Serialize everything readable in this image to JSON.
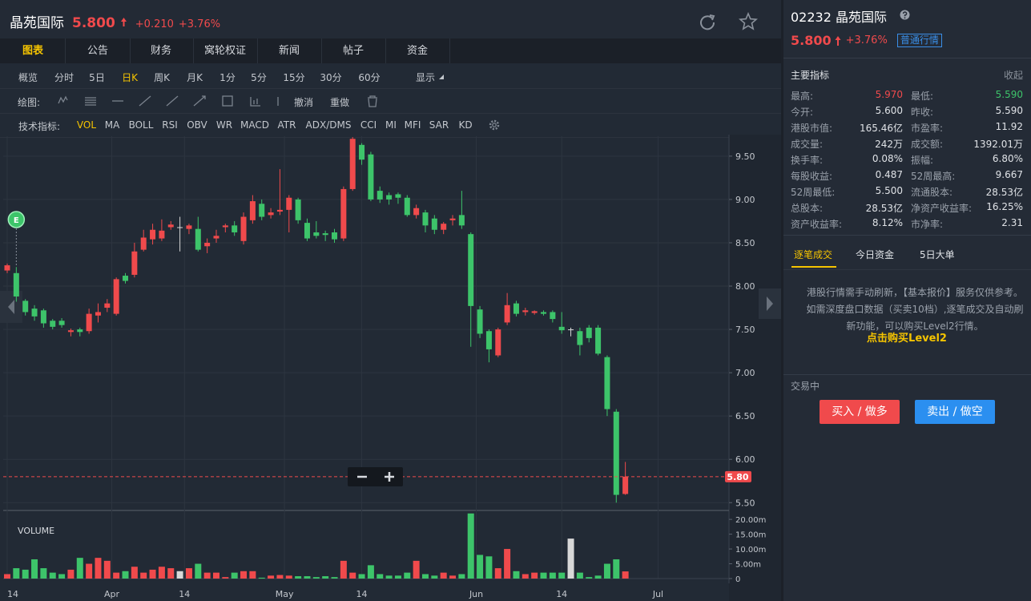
{
  "header": {
    "name": "晶苑国际",
    "price": "5.800",
    "change": "+0.210",
    "change_pct": "+3.76%"
  },
  "tabs": [
    "图表",
    "公告",
    "财务",
    "窝轮权证",
    "新闻",
    "帖子",
    "资金"
  ],
  "periods": [
    "概览",
    "分时",
    "5日",
    "日K",
    "周K",
    "月K",
    "1分",
    "5分",
    "15分",
    "30分",
    "60分"
  ],
  "display": "显示",
  "draw_label": "绘图:",
  "draw_actions": [
    "撤消",
    "重做"
  ],
  "indicator_label": "技术指标:",
  "indicators": [
    "VOL",
    "MA",
    "BOLL",
    "RSI",
    "OBV",
    "WR",
    "MACD",
    "ATR",
    "ADX/DMS",
    "CCI",
    "MI",
    "MFI",
    "SAR",
    "KD"
  ],
  "chart_data": [
    {
      "type": "candlestick",
      "event_label": "E",
      "up_color": "#f04a4c",
      "down_color": "#3dc46a",
      "flat_color": "#d8d8d8",
      "categories": [
        null,
        null,
        null,
        null,
        null,
        null,
        null,
        null,
        null,
        null,
        null,
        null,
        null,
        null,
        null,
        null,
        null,
        null,
        null,
        null,
        null,
        null,
        null,
        null,
        null,
        null,
        null,
        null,
        null,
        null,
        null,
        null,
        null,
        null,
        null,
        null,
        null,
        null,
        null,
        null,
        null,
        null,
        null,
        null,
        null,
        null,
        null,
        null,
        null,
        null,
        null,
        null,
        null,
        null,
        null,
        null,
        null,
        null,
        null,
        null,
        null,
        null,
        null,
        null,
        null,
        null,
        null,
        null,
        null
      ],
      "open": [
        8.18,
        8.15,
        7.83,
        7.74,
        7.72,
        7.6,
        7.6,
        7.47,
        7.5,
        7.48,
        7.66,
        7.75,
        7.68,
        8.12,
        8.13,
        8.42,
        8.54,
        8.55,
        8.68,
        8.68,
        8.66,
        8.66,
        8.46,
        8.55,
        8.68,
        8.7,
        8.52,
        8.76,
        8.95,
        8.82,
        8.86,
        8.88,
        9.0,
        8.73,
        8.62,
        8.61,
        8.62,
        8.55,
        9.12,
        9.63,
        9.52,
        9.1,
        9.05,
        9.06,
        9.02,
        8.82,
        8.85,
        8.78,
        8.65,
        8.76,
        8.82,
        8.6,
        7.73,
        7.48,
        7.2,
        7.58,
        7.8,
        7.7,
        7.69,
        7.7,
        7.7,
        7.53,
        7.5,
        7.48,
        7.52,
        7.52,
        7.18,
        6.55,
        5.6
      ],
      "high": [
        8.26,
        8.22,
        7.85,
        7.78,
        7.74,
        7.62,
        7.63,
        7.51,
        7.52,
        7.74,
        7.8,
        7.85,
        8.1,
        8.15,
        8.5,
        8.65,
        8.72,
        8.77,
        8.75,
        8.8,
        8.72,
        8.8,
        8.55,
        8.65,
        8.72,
        8.75,
        8.85,
        9.05,
        9.0,
        8.9,
        9.35,
        9.05,
        9.02,
        8.78,
        8.75,
        8.64,
        8.66,
        9.15,
        9.72,
        9.65,
        9.55,
        9.15,
        9.08,
        9.08,
        9.05,
        8.94,
        8.88,
        8.82,
        8.74,
        8.82,
        9.1,
        8.62,
        7.77,
        7.5,
        7.52,
        7.92,
        7.83,
        7.75,
        7.72,
        7.72,
        7.72,
        7.7,
        7.52,
        7.52,
        7.55,
        7.55,
        7.2,
        6.58,
        5.97
      ],
      "low": [
        8.15,
        7.82,
        7.66,
        7.6,
        7.52,
        7.5,
        7.52,
        7.42,
        7.42,
        7.45,
        7.58,
        7.7,
        7.66,
        8.03,
        8.1,
        8.4,
        8.48,
        8.52,
        8.65,
        8.4,
        8.6,
        8.4,
        8.38,
        8.5,
        8.62,
        8.58,
        8.48,
        8.72,
        8.76,
        8.78,
        8.82,
        8.62,
        8.72,
        8.52,
        8.55,
        8.52,
        8.5,
        8.52,
        9.1,
        9.4,
        8.98,
        8.96,
        8.94,
        8.95,
        8.8,
        8.78,
        8.62,
        8.6,
        8.6,
        8.7,
        8.66,
        7.3,
        7.4,
        7.12,
        7.18,
        7.55,
        7.65,
        7.66,
        7.67,
        7.66,
        7.58,
        7.45,
        7.42,
        7.2,
        7.35,
        7.2,
        6.5,
        5.5,
        5.59
      ],
      "close": [
        8.24,
        7.88,
        7.7,
        7.65,
        7.57,
        7.53,
        7.55,
        7.49,
        7.47,
        7.68,
        7.7,
        7.8,
        8.08,
        8.06,
        8.4,
        8.56,
        8.65,
        8.64,
        8.71,
        8.68,
        8.7,
        8.42,
        8.5,
        8.58,
        8.7,
        8.62,
        8.8,
        8.98,
        8.8,
        8.85,
        8.88,
        9.02,
        8.76,
        8.55,
        8.58,
        8.59,
        8.54,
        9.12,
        9.7,
        9.46,
        9.0,
        9.0,
        9.0,
        9.02,
        8.82,
        8.9,
        8.7,
        8.65,
        8.72,
        8.78,
        8.7,
        7.77,
        7.45,
        7.27,
        7.5,
        7.78,
        7.68,
        7.72,
        7.71,
        7.68,
        7.62,
        7.49,
        7.5,
        7.32,
        7.4,
        7.22,
        6.58,
        5.59,
        5.8
      ],
      "last_price": {
        "value": 5.8,
        "label": "5.80"
      },
      "ylim": [
        5.41,
        9.73
      ],
      "yticks": [
        {
          "value": 5.5,
          "label": "5.50"
        },
        {
          "value": 6,
          "label": "6.00"
        },
        {
          "value": 6.5,
          "label": "6.50"
        },
        {
          "value": 7,
          "label": "7.00"
        },
        {
          "value": 7.5,
          "label": "7.50"
        },
        {
          "value": 8,
          "label": "8.00"
        },
        {
          "value": 8.5,
          "label": "8.50"
        },
        {
          "value": 9,
          "label": "9.00"
        },
        {
          "value": 9.5,
          "label": "9.50"
        }
      ],
      "xlim": [
        -0.44,
        79.4
      ],
      "xticks": [
        {
          "value": 0,
          "label": "14"
        },
        {
          "value": 11.5,
          "label": "Apr"
        },
        {
          "value": 19.5,
          "label": "14"
        },
        {
          "value": 30.5,
          "label": "May"
        },
        {
          "value": 39,
          "label": "14"
        },
        {
          "value": 51.6,
          "label": "Jun"
        },
        {
          "value": 61,
          "label": "14"
        },
        {
          "value": 71.6,
          "label": "Jul"
        }
      ],
      "grid": true
    },
    {
      "type": "bar",
      "title": "VOLUME",
      "values": [
        1.5,
        3.5,
        3.0,
        6.5,
        3.5,
        2.0,
        1.5,
        3.0,
        7.0,
        5.0,
        7.0,
        6.0,
        2.0,
        2.5,
        4.0,
        2.0,
        3.0,
        4.0,
        3.5,
        2.5,
        3.5,
        5.0,
        2.0,
        2.0,
        0.5,
        2.0,
        2.5,
        2.5,
        0.3,
        1.0,
        1.2,
        1.0,
        0.8,
        0.8,
        0.5,
        0.8,
        0.5,
        6.0,
        2.0,
        1.5,
        4.5,
        1.5,
        1.0,
        1.0,
        2.0,
        6.0,
        1.5,
        1.0,
        2.0,
        1.0,
        1.5,
        22.0,
        8.0,
        7.5,
        3.5,
        10.0,
        2.5,
        1.5,
        2.0,
        2.0,
        2.0,
        2.0,
        13.5,
        2.0,
        0.5,
        1.0,
        5.0,
        6.5,
        2.42
      ],
      "ylim": [
        0,
        22.2
      ],
      "yticks": [
        0,
        {
          "value": 5,
          "label": "5.00m"
        },
        {
          "value": 10,
          "label": "10.00m"
        },
        {
          "value": 15,
          "label": "15.00m"
        },
        {
          "value": 20,
          "label": "20.00m"
        }
      ]
    }
  ],
  "quote": {
    "code_name": "02232 晶苑国际",
    "price": "5.800",
    "change_pct": "+3.76%",
    "badge": "普通行情"
  },
  "stats": {
    "title": "主要指标",
    "toggle": "收起",
    "rows": [
      [
        "最高:",
        "5.970",
        "最低:",
        "5.590"
      ],
      [
        "今开:",
        "5.600",
        "昨收:",
        "5.590"
      ],
      [
        "港股市值:",
        "165.46亿",
        "市盈率:",
        "11.92"
      ],
      [
        "成交量:",
        "242万",
        "成交额:",
        "1392.01万"
      ],
      [
        "换手率:",
        "0.08%",
        "振幅:",
        "6.80%"
      ],
      [
        "每股收益:",
        "0.487",
        "52周最高:",
        "9.667"
      ],
      [
        "52周最低:",
        "5.500",
        "流通股本:",
        "28.53亿"
      ],
      [
        "总股本:",
        "28.53亿",
        "净资产收益率:",
        "16.25%"
      ],
      [
        "资产收益率:",
        "8.12%",
        "市净率:",
        "2.31"
      ]
    ]
  },
  "trade_tabs": [
    "逐笔成交",
    "今日资金",
    "5日大单"
  ],
  "notice": "港股行情需手动刷新，【基本报价】服务仅供参考。如需深度盘口数据（买卖10档）,逐笔成交及自动刷新功能，可以购买Level2行情。",
  "upgrade_link": "点击购买Level2",
  "status": "交易中",
  "buttons": {
    "buy": "买入 / 做多",
    "sell": "卖出 / 做空"
  }
}
